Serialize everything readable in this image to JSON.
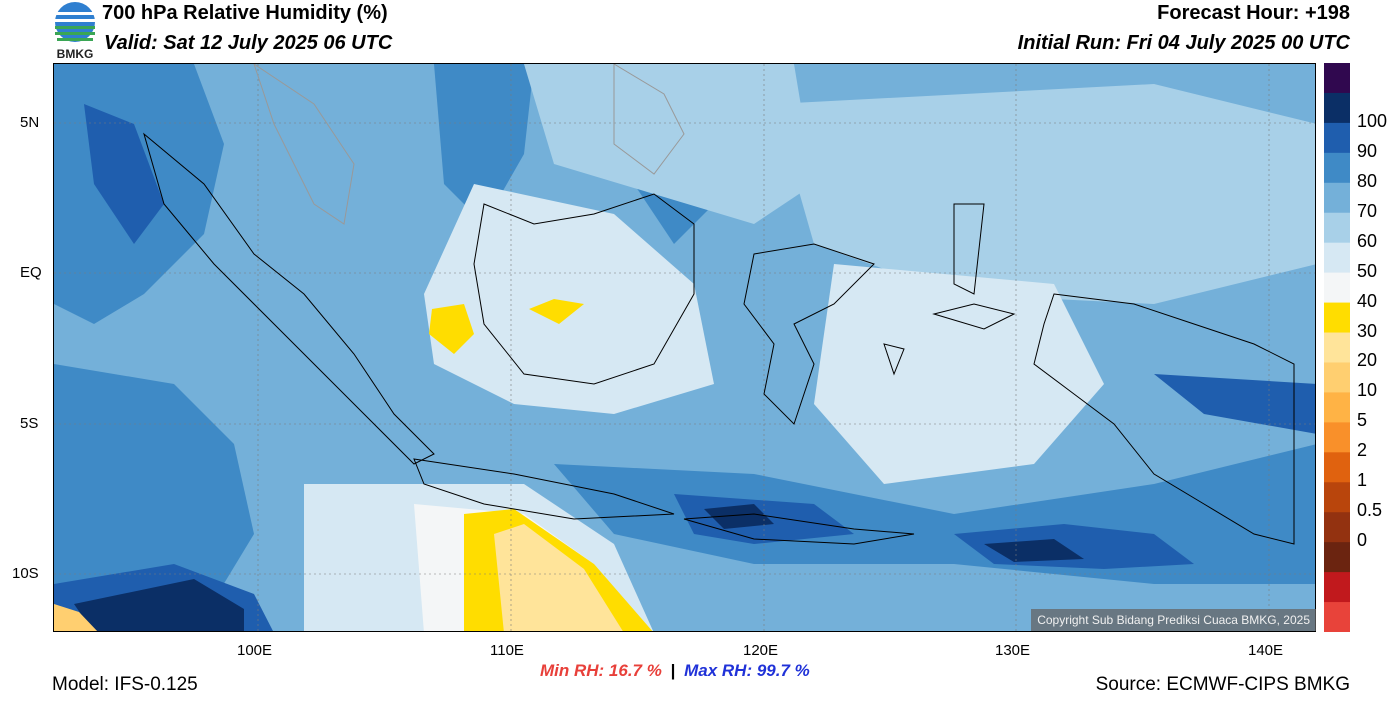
{
  "header": {
    "title": "700 hPa Relative Humidity (%)",
    "valid": "Valid: Sat 12 July 2025 06 UTC",
    "forecast_hour": "Forecast Hour: +198",
    "initial_run": "Initial Run: Fri 04 July 2025 00 UTC",
    "logo_text": "BMKG"
  },
  "axes": {
    "lat_labels": [
      "5N",
      "EQ",
      "5S",
      "10S"
    ],
    "lon_labels": [
      "100E",
      "110E",
      "120E",
      "130E",
      "140E"
    ]
  },
  "colorbar": {
    "labels": [
      "100",
      "90",
      "80",
      "70",
      "60",
      "50",
      "40",
      "30",
      "20",
      "10",
      "5",
      "2",
      "1",
      "0.5",
      "0"
    ],
    "colors": [
      "#30084f",
      "#0b2f66",
      "#1f5eae",
      "#3f8ac6",
      "#74b0d9",
      "#a8d0e8",
      "#d6e8f3",
      "#f4f6f7",
      "#ffdd00",
      "#ffe49a",
      "#ffcf70",
      "#ffb345",
      "#f9902a",
      "#e0620f",
      "#b9450c",
      "#933210",
      "#6b2410",
      "#c1191d",
      "#e8433a"
    ]
  },
  "footer": {
    "model": "Model: IFS-0.125",
    "min_rh": "Min RH:  16.7 %",
    "separator": "|",
    "max_rh": "Max RH:  99.7 %",
    "source": "Source: ECMWF-CIPS BMKG",
    "copyright": "Copyright Sub Bidang Prediksi Cuaca BMKG, 2025"
  }
}
